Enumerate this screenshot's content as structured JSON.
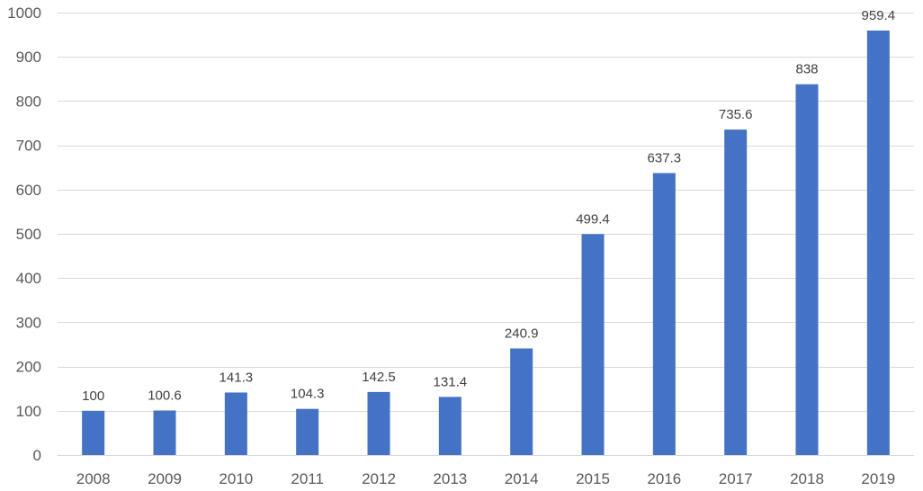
{
  "chart_data": {
    "type": "bar",
    "title": "",
    "xlabel": "",
    "ylabel": "",
    "categories": [
      "2008",
      "2009",
      "2010",
      "2011",
      "2012",
      "2013",
      "2014",
      "2015",
      "2016",
      "2017",
      "2018",
      "2019"
    ],
    "values": [
      100,
      100.6,
      141.3,
      104.3,
      142.5,
      131.4,
      240.9,
      499.4,
      637.3,
      735.6,
      838,
      959.4
    ],
    "value_labels": [
      "100",
      "100.6",
      "141.3",
      "104.3",
      "142.5",
      "131.4",
      "240.9",
      "499.4",
      "637.3",
      "735.6",
      "838",
      "959.4"
    ],
    "ylim": [
      0,
      1000
    ],
    "yticks": [
      0,
      100,
      200,
      300,
      400,
      500,
      600,
      700,
      800,
      900,
      1000
    ],
    "ytick_labels": [
      "0",
      "100",
      "200",
      "300",
      "400",
      "500",
      "600",
      "700",
      "800",
      "900",
      "1000"
    ],
    "grid": true,
    "legend": "none",
    "bar_color": "#4472c4",
    "grid_color": "#d9d9d9"
  }
}
